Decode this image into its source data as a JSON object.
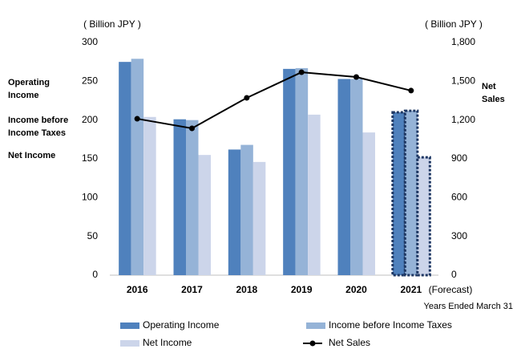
{
  "chart_data": {
    "type": "bar",
    "unit_left": "( Billion JPY )",
    "unit_right": "( Billion JPY )",
    "categories": [
      "2016",
      "2017",
      "2018",
      "2019",
      "2020",
      "2021"
    ],
    "forecast_note": "(Forecast)",
    "x_note": "Years Ended March 31",
    "dashed": [
      false,
      false,
      false,
      false,
      false,
      true
    ],
    "left_labels": [
      "Operating Income",
      "Income before Income Taxes",
      "Net Income"
    ],
    "right_label": "Net Sales",
    "series": [
      {
        "name": "Operating Income",
        "color": "#4f81bd",
        "values": [
          275,
          201,
          162,
          266,
          253,
          210
        ]
      },
      {
        "name": "Income before Income Taxes",
        "color": "#95b3d7",
        "values": [
          279,
          200,
          168,
          267,
          253,
          212
        ]
      },
      {
        "name": "Net Income",
        "color": "#ccd5ea",
        "values": [
          204,
          155,
          146,
          207,
          184,
          152
        ]
      },
      {
        "name": "Net Sales",
        "color": "#000000",
        "type": "line",
        "axis": "y2",
        "values": [
          1210,
          1136,
          1372,
          1570,
          1533,
          1428
        ]
      }
    ],
    "ylim": [
      0,
      300
    ],
    "yticks": [
      0,
      50,
      100,
      150,
      200,
      250,
      300
    ],
    "y2lim": [
      0,
      1800
    ],
    "y2ticks": [
      0,
      300,
      600,
      900,
      {
        "value": 1200,
        "label": "1,200"
      },
      {
        "value": 1500,
        "label": "1,500"
      },
      {
        "value": 1800,
        "label": "1,800"
      }
    ],
    "grid": false
  }
}
